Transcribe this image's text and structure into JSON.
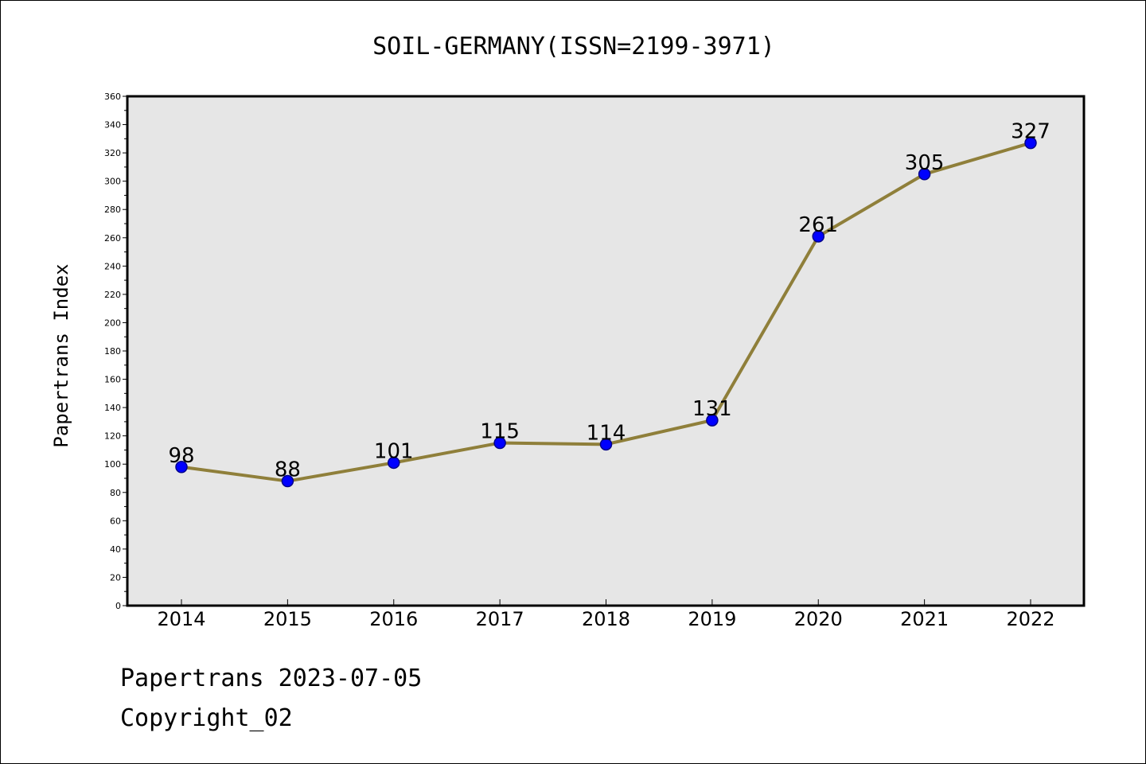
{
  "chart_data": {
    "type": "line",
    "title": "SOIL-GERMANY(ISSN=2199-3971)",
    "xlabel": "",
    "ylabel": "Papertrans Index",
    "categories": [
      "2014",
      "2015",
      "2016",
      "2017",
      "2018",
      "2019",
      "2020",
      "2021",
      "2022"
    ],
    "series": [
      {
        "values": [
          98,
          88,
          101,
          115,
          114,
          131,
          261,
          305,
          327
        ]
      }
    ],
    "data_labels": [
      "98",
      "88",
      "101",
      "115",
      "114",
      "131",
      "261",
      "305",
      "327"
    ],
    "ylim": [
      0,
      360
    ],
    "yticks": [
      0,
      20,
      40,
      60,
      80,
      100,
      120,
      140,
      160,
      180,
      200,
      220,
      240,
      260,
      280,
      300,
      320,
      340,
      360
    ],
    "grid": false,
    "legend": "none",
    "colors": {
      "line": "#8f7f3a",
      "marker": "#0000ff",
      "marker_edge": "#00008b",
      "plot_background": "#e6e6e6",
      "axis": "#000000"
    }
  },
  "footer": {
    "date_line": "Papertrans 2023-07-05",
    "copyright_line": "Copyright_02"
  }
}
